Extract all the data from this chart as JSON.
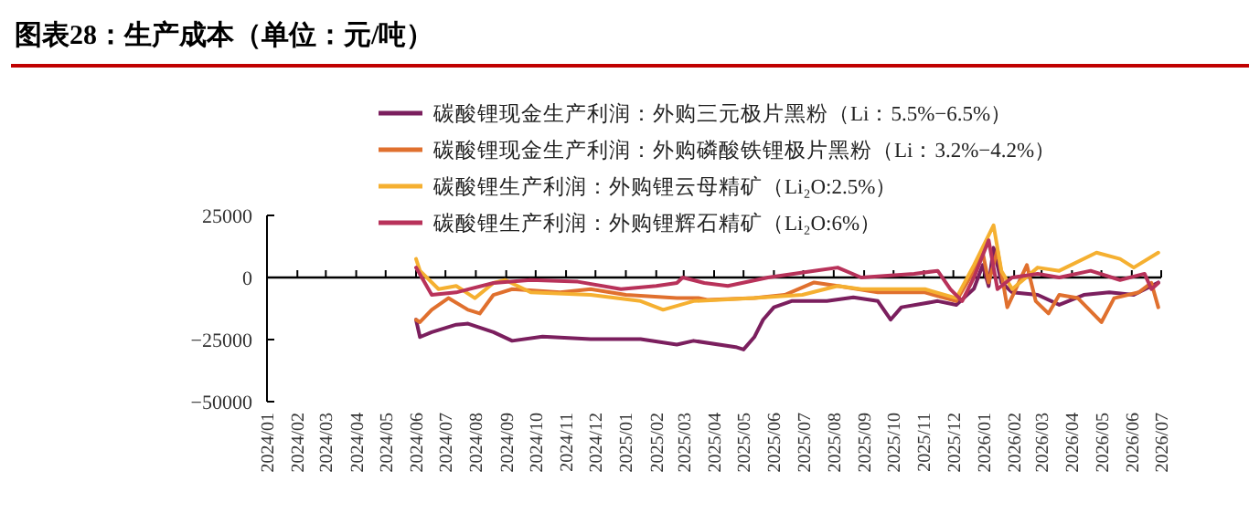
{
  "chart_data": {
    "type": "line",
    "title": "图表28：生产成本（单位：元/吨）",
    "xlim": [
      "2024-01",
      "2026-07"
    ],
    "xticks": [
      {
        "value": "2024-01",
        "label": "2024/01"
      },
      {
        "value": "2024-02",
        "label": "2024/02"
      },
      {
        "value": "2024-03",
        "label": "2024/03"
      },
      {
        "value": "2024-04",
        "label": "2024/04"
      },
      {
        "value": "2024-05",
        "label": "2024/05"
      },
      {
        "value": "2024-06",
        "label": "2024/06"
      },
      {
        "value": "2024-07",
        "label": "2024/07"
      },
      {
        "value": "2024-08",
        "label": "2024/08"
      },
      {
        "value": "2024-09",
        "label": "2024/09"
      },
      {
        "value": "2024-10",
        "label": "2024/10"
      },
      {
        "value": "2024-11",
        "label": "2024/11"
      },
      {
        "value": "2024-12",
        "label": "2024/12"
      },
      {
        "value": "2025-01",
        "label": "2025/01"
      },
      {
        "value": "2025-02",
        "label": "2025/02"
      },
      {
        "value": "2025-03",
        "label": "2025/03"
      },
      {
        "value": "2025-04",
        "label": "2025/04"
      },
      {
        "value": "2025-05",
        "label": "2025/05"
      },
      {
        "value": "2025-06",
        "label": "2025/06"
      },
      {
        "value": "2025-07",
        "label": "2025/07"
      },
      {
        "value": "2025-08",
        "label": "2025/08"
      },
      {
        "value": "2025-09",
        "label": "2025/09"
      },
      {
        "value": "2025-10",
        "label": "2025/10"
      },
      {
        "value": "2025-11",
        "label": "2025/11"
      },
      {
        "value": "2025-12",
        "label": "2025/12"
      },
      {
        "value": "2026-01",
        "label": "2026/01"
      },
      {
        "value": "2026-02",
        "label": "2026/02"
      },
      {
        "value": "2026-03",
        "label": "2026/03"
      },
      {
        "value": "2026-04",
        "label": "2026/04"
      },
      {
        "value": "2026-05",
        "label": "2026/05"
      },
      {
        "value": "2026-06",
        "label": "2026/06"
      },
      {
        "value": "2026-07",
        "label": "2026/07"
      }
    ],
    "ylim": [
      -50000,
      25000
    ],
    "yticks": [
      25000,
      0,
      {
        "value": -25000,
        "label": "−25000"
      },
      {
        "value": -50000,
        "label": "−50000"
      }
    ],
    "legend": "top",
    "marker": "none",
    "line_style": "solid",
    "series": [
      {
        "name": "碳酸锂现金生产利润：外购三元极片黑粉（Li：5.5%−6.5%）",
        "color": "#7b1f5e",
        "x": [
          "2024-06-01",
          "2024-06-05",
          "2024-06-17",
          "2024-07-12",
          "2024-07-24",
          "2024-08-19",
          "2024-09-07",
          "2024-10-08",
          "2024-11-26",
          "2025-01-16",
          "2025-02-22",
          "2025-03-11",
          "2025-04-23",
          "2025-05-01",
          "2025-05-12",
          "2025-05-21",
          "2025-06-01",
          "2025-06-19",
          "2025-07-25",
          "2025-08-21",
          "2025-09-15",
          "2025-09-28",
          "2025-10-09",
          "2025-11-15",
          "2025-12-04",
          "2025-12-22",
          "2025-12-31",
          "2026-01-06",
          "2026-01-11",
          "2026-01-19",
          "2026-01-30",
          "2026-02-25",
          "2026-03-19",
          "2026-04-13",
          "2026-05-09",
          "2026-06-03",
          "2026-06-28"
        ],
        "values": [
          -17000,
          -24000,
          -22000,
          -19000,
          -18600,
          -22000,
          -25500,
          -23800,
          -24800,
          -24800,
          -27000,
          -25500,
          -28000,
          -29000,
          -24000,
          -17000,
          -12000,
          -9500,
          -9500,
          -8000,
          -9500,
          -17000,
          -12000,
          -9500,
          -11000,
          -4500,
          5000,
          -3500,
          12000,
          -2000,
          -6000,
          -7000,
          -11000,
          -7000,
          -6000,
          -7000,
          -2000
        ]
      },
      {
        "name": "碳酸锂现金生产利润：外购磷酸铁锂极片黑粉（Li：3.2%−4.2%）",
        "color": "#e0702e",
        "x": [
          "2024-06-01",
          "2024-06-05",
          "2024-06-17",
          "2024-07-04",
          "2024-07-24",
          "2024-08-05",
          "2024-08-19",
          "2024-09-07",
          "2024-10-26",
          "2024-11-26",
          "2025-01-01",
          "2025-02-22",
          "2025-03-16",
          "2025-03-25",
          "2025-05-12",
          "2025-06-12",
          "2025-07-12",
          "2025-08-05",
          "2025-09-15",
          "2025-11-02",
          "2025-12-04",
          "2025-12-18",
          "2025-12-31",
          "2026-01-06",
          "2026-01-15",
          "2026-01-25",
          "2026-02-14",
          "2026-02-23",
          "2026-03-08",
          "2026-03-19",
          "2026-04-07",
          "2026-05-01",
          "2026-05-14",
          "2026-06-08",
          "2026-06-21",
          "2026-06-28"
        ],
        "values": [
          -17000,
          -18000,
          -13000,
          -8300,
          -13000,
          -14500,
          -7000,
          -4700,
          -6000,
          -4700,
          -7000,
          -8300,
          -8300,
          -9000,
          -8300,
          -7000,
          -2000,
          -3400,
          -6000,
          -6000,
          -9500,
          0,
          10000,
          -2000,
          11000,
          -12000,
          5000,
          -9500,
          -14500,
          -7000,
          -8300,
          -18000,
          -8300,
          -6000,
          -2200,
          -12000
        ]
      },
      {
        "name": "碳酸锂生产利润：外购锂云母精矿（Li₂O:2.5%）",
        "color": "#f5b031",
        "x": [
          "2024-06-01",
          "2024-06-05",
          "2024-06-24",
          "2024-07-12",
          "2024-07-31",
          "2024-08-19",
          "2024-08-31",
          "2024-09-26",
          "2024-11-26",
          "2025-01-16",
          "2025-02-08",
          "2025-03-11",
          "2025-05-12",
          "2025-06-30",
          "2025-08-05",
          "2025-08-29",
          "2025-11-02",
          "2025-12-04",
          "2025-12-22",
          "2026-01-11",
          "2026-01-19",
          "2026-01-30",
          "2026-02-25",
          "2026-03-19",
          "2026-04-26",
          "2026-05-20",
          "2026-06-03",
          "2026-06-28"
        ],
        "values": [
          7500,
          2700,
          -4700,
          -3400,
          -8300,
          -2200,
          -1000,
          -6000,
          -7000,
          -9500,
          -13000,
          -9500,
          -8300,
          -7000,
          -3400,
          -4700,
          -4700,
          -8300,
          5000,
          21000,
          2700,
          -4700,
          4000,
          2700,
          10000,
          7500,
          4000,
          10000
        ]
      },
      {
        "name": "碳酸锂生产利润：外购锂辉石精矿（Li₂O:6%）",
        "color": "#b8325a",
        "x": [
          "2024-06-01",
          "2024-06-17",
          "2024-07-12",
          "2024-08-19",
          "2024-09-26",
          "2024-11-13",
          "2024-12-27",
          "2025-02-01",
          "2025-02-22",
          "2025-02-28",
          "2025-03-22",
          "2025-04-15",
          "2025-05-26",
          "2025-07-12",
          "2025-08-05",
          "2025-08-29",
          "2025-10-22",
          "2025-11-15",
          "2025-11-28",
          "2025-12-10",
          "2025-12-22",
          "2026-01-06",
          "2026-01-15",
          "2026-01-30",
          "2026-02-25",
          "2026-03-19",
          "2026-04-20",
          "2026-05-20",
          "2026-06-14",
          "2026-06-21",
          "2026-06-28"
        ],
        "values": [
          4000,
          -7000,
          -6000,
          -2200,
          -1000,
          -1700,
          -4700,
          -3400,
          -2200,
          0,
          -2200,
          -3400,
          0,
          2700,
          4000,
          0,
          1500,
          2700,
          -4700,
          -9500,
          0,
          15000,
          -4700,
          0,
          1500,
          0,
          2700,
          -1000,
          1500,
          -4700,
          -2200
        ]
      }
    ]
  }
}
